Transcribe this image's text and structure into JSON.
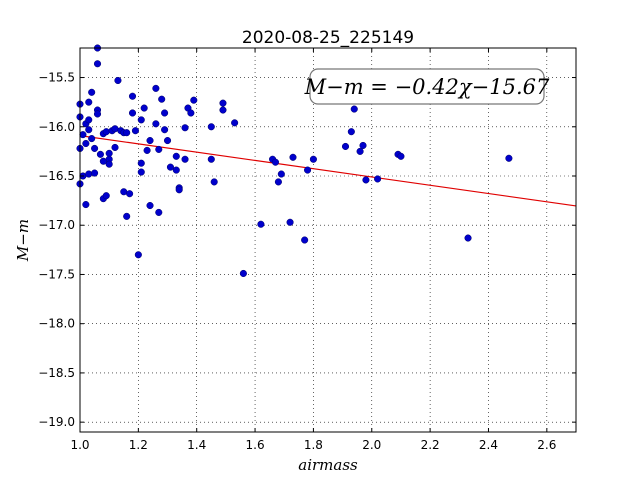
{
  "chart_data": {
    "type": "scatter",
    "title": "2020-08-25_225149",
    "xlabel": "airmass",
    "ylabel": "M−m",
    "xlim": [
      1.0,
      2.7
    ],
    "ylim": [
      -19.1,
      -15.2
    ],
    "y_inverted": true,
    "grid": true,
    "xticks": [
      1.0,
      1.2,
      1.4,
      1.6,
      1.8,
      2.0,
      2.2,
      2.4,
      2.6
    ],
    "xtick_labels": [
      "1.0",
      "1.2",
      "1.4",
      "1.6",
      "1.8",
      "2.0",
      "2.2",
      "2.4",
      "2.6"
    ],
    "yticks": [
      -15.5,
      -16.0,
      -16.5,
      -17.0,
      -17.5,
      -18.0,
      -18.5,
      -19.0
    ],
    "ytick_labels": [
      "−15.5",
      "−16.0",
      "−16.5",
      "−17.0",
      "−17.5",
      "−18.0",
      "−18.5",
      "−19.0"
    ],
    "annotation": "M−m = −0.42χ−15.67",
    "point_color": "#0000cc",
    "fit": {
      "slope": -0.42,
      "intercept": -15.67,
      "color": "#e00000"
    },
    "points": [
      [
        1.0,
        -15.77
      ],
      [
        1.0,
        -15.9
      ],
      [
        1.0,
        -16.22
      ],
      [
        1.0,
        -16.58
      ],
      [
        1.01,
        -16.5
      ],
      [
        1.01,
        -16.08
      ],
      [
        1.02,
        -15.97
      ],
      [
        1.02,
        -16.17
      ],
      [
        1.02,
        -16.79
      ],
      [
        1.03,
        -15.75
      ],
      [
        1.03,
        -15.93
      ],
      [
        1.03,
        -16.03
      ],
      [
        1.03,
        -16.48
      ],
      [
        1.04,
        -16.12
      ],
      [
        1.04,
        -15.65
      ],
      [
        1.05,
        -16.47
      ],
      [
        1.05,
        -16.22
      ],
      [
        1.06,
        -15.36
      ],
      [
        1.06,
        -15.2
      ],
      [
        1.06,
        -15.83
      ],
      [
        1.06,
        -15.87
      ],
      [
        1.07,
        -16.28
      ],
      [
        1.08,
        -16.07
      ],
      [
        1.08,
        -16.35
      ],
      [
        1.08,
        -16.73
      ],
      [
        1.09,
        -16.7
      ],
      [
        1.09,
        -16.05
      ],
      [
        1.1,
        -16.27
      ],
      [
        1.1,
        -16.33
      ],
      [
        1.1,
        -16.38
      ],
      [
        1.11,
        -16.04
      ],
      [
        1.12,
        -16.02
      ],
      [
        1.12,
        -16.21
      ],
      [
        1.13,
        -15.53
      ],
      [
        1.14,
        -16.04
      ],
      [
        1.15,
        -16.06
      ],
      [
        1.15,
        -16.66
      ],
      [
        1.16,
        -16.91
      ],
      [
        1.16,
        -16.06
      ],
      [
        1.17,
        -16.68
      ],
      [
        1.18,
        -15.69
      ],
      [
        1.18,
        -15.86
      ],
      [
        1.19,
        -16.04
      ],
      [
        1.2,
        -17.3
      ],
      [
        1.21,
        -16.37
      ],
      [
        1.21,
        -15.93
      ],
      [
        1.21,
        -16.46
      ],
      [
        1.22,
        -15.81
      ],
      [
        1.23,
        -16.24
      ],
      [
        1.24,
        -16.14
      ],
      [
        1.24,
        -16.8
      ],
      [
        1.26,
        -15.61
      ],
      [
        1.26,
        -15.97
      ],
      [
        1.27,
        -16.23
      ],
      [
        1.27,
        -16.87
      ],
      [
        1.28,
        -15.72
      ],
      [
        1.29,
        -15.86
      ],
      [
        1.29,
        -16.03
      ],
      [
        1.3,
        -16.14
      ],
      [
        1.31,
        -16.41
      ],
      [
        1.33,
        -16.3
      ],
      [
        1.33,
        -16.44
      ],
      [
        1.34,
        -16.62
      ],
      [
        1.34,
        -16.64
      ],
      [
        1.36,
        -16.01
      ],
      [
        1.36,
        -16.33
      ],
      [
        1.37,
        -15.81
      ],
      [
        1.38,
        -15.86
      ],
      [
        1.39,
        -15.73
      ],
      [
        1.45,
        -16.0
      ],
      [
        1.45,
        -16.33
      ],
      [
        1.46,
        -16.56
      ],
      [
        1.49,
        -15.83
      ],
      [
        1.49,
        -15.76
      ],
      [
        1.53,
        -15.96
      ],
      [
        1.56,
        -17.49
      ],
      [
        1.62,
        -16.99
      ],
      [
        1.66,
        -16.33
      ],
      [
        1.67,
        -16.36
      ],
      [
        1.68,
        -16.56
      ],
      [
        1.69,
        -16.48
      ],
      [
        1.72,
        -16.97
      ],
      [
        1.73,
        -16.31
      ],
      [
        1.77,
        -17.15
      ],
      [
        1.78,
        -16.44
      ],
      [
        1.8,
        -16.33
      ],
      [
        1.91,
        -16.2
      ],
      [
        1.93,
        -16.05
      ],
      [
        1.94,
        -15.82
      ],
      [
        1.96,
        -16.25
      ],
      [
        1.97,
        -16.19
      ],
      [
        1.98,
        -16.54
      ],
      [
        2.02,
        -16.53
      ],
      [
        2.09,
        -16.28
      ],
      [
        2.1,
        -16.3
      ],
      [
        2.33,
        -17.13
      ],
      [
        2.47,
        -16.32
      ]
    ]
  }
}
